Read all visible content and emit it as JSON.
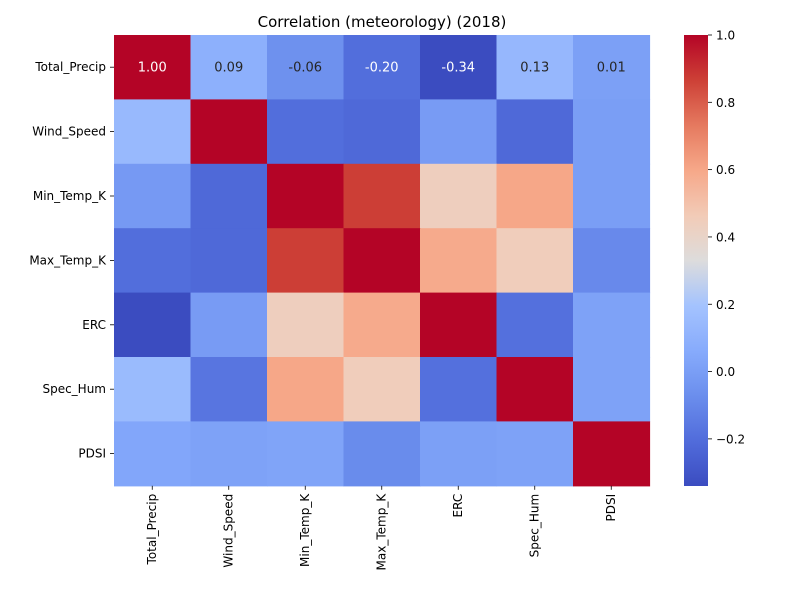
{
  "chart_data": {
    "type": "heatmap",
    "title": "Correlation (meteorology) (2018)",
    "xlabel": "",
    "ylabel": "",
    "x_labels": [
      "Total_Precip",
      "Wind_Speed",
      "Min_Temp_K",
      "Max_Temp_K",
      "ERC",
      "Spec_Hum",
      "PDSI"
    ],
    "y_labels": [
      "Total_Precip",
      "Wind_Speed",
      "Min_Temp_K",
      "Max_Temp_K",
      "ERC",
      "Spec_Hum",
      "PDSI"
    ],
    "matrix": [
      [
        1.0,
        0.09,
        -0.06,
        -0.2,
        -0.34,
        0.13,
        0.01
      ],
      [
        0.14,
        1.0,
        -0.2,
        -0.22,
        -0.01,
        -0.22,
        0.0
      ],
      [
        -0.02,
        -0.22,
        1.0,
        0.87,
        0.44,
        0.6,
        0.0
      ],
      [
        -0.2,
        -0.22,
        0.87,
        1.0,
        0.59,
        0.45,
        -0.09
      ],
      [
        -0.34,
        -0.01,
        0.44,
        0.59,
        1.0,
        -0.19,
        0.02
      ],
      [
        0.15,
        -0.17,
        0.6,
        0.45,
        -0.19,
        1.0,
        0.02
      ],
      [
        0.04,
        0.02,
        0.03,
        -0.08,
        0.01,
        0.02,
        1.0
      ]
    ],
    "annotated_row": 0,
    "annotations": [
      "1.00",
      "0.09",
      "-0.06",
      "-0.20",
      "-0.34",
      "0.13",
      "0.01"
    ],
    "colormap": "coolwarm",
    "vmin": -0.34,
    "vmax": 1.0,
    "colorbar": {
      "ticks": [
        1.0,
        0.8,
        0.6,
        0.4,
        0.2,
        0.0,
        -0.2
      ],
      "tick_labels": [
        "1.0",
        "0.8",
        "0.6",
        "0.4",
        "0.2",
        "0.0",
        "−0.2"
      ]
    }
  }
}
